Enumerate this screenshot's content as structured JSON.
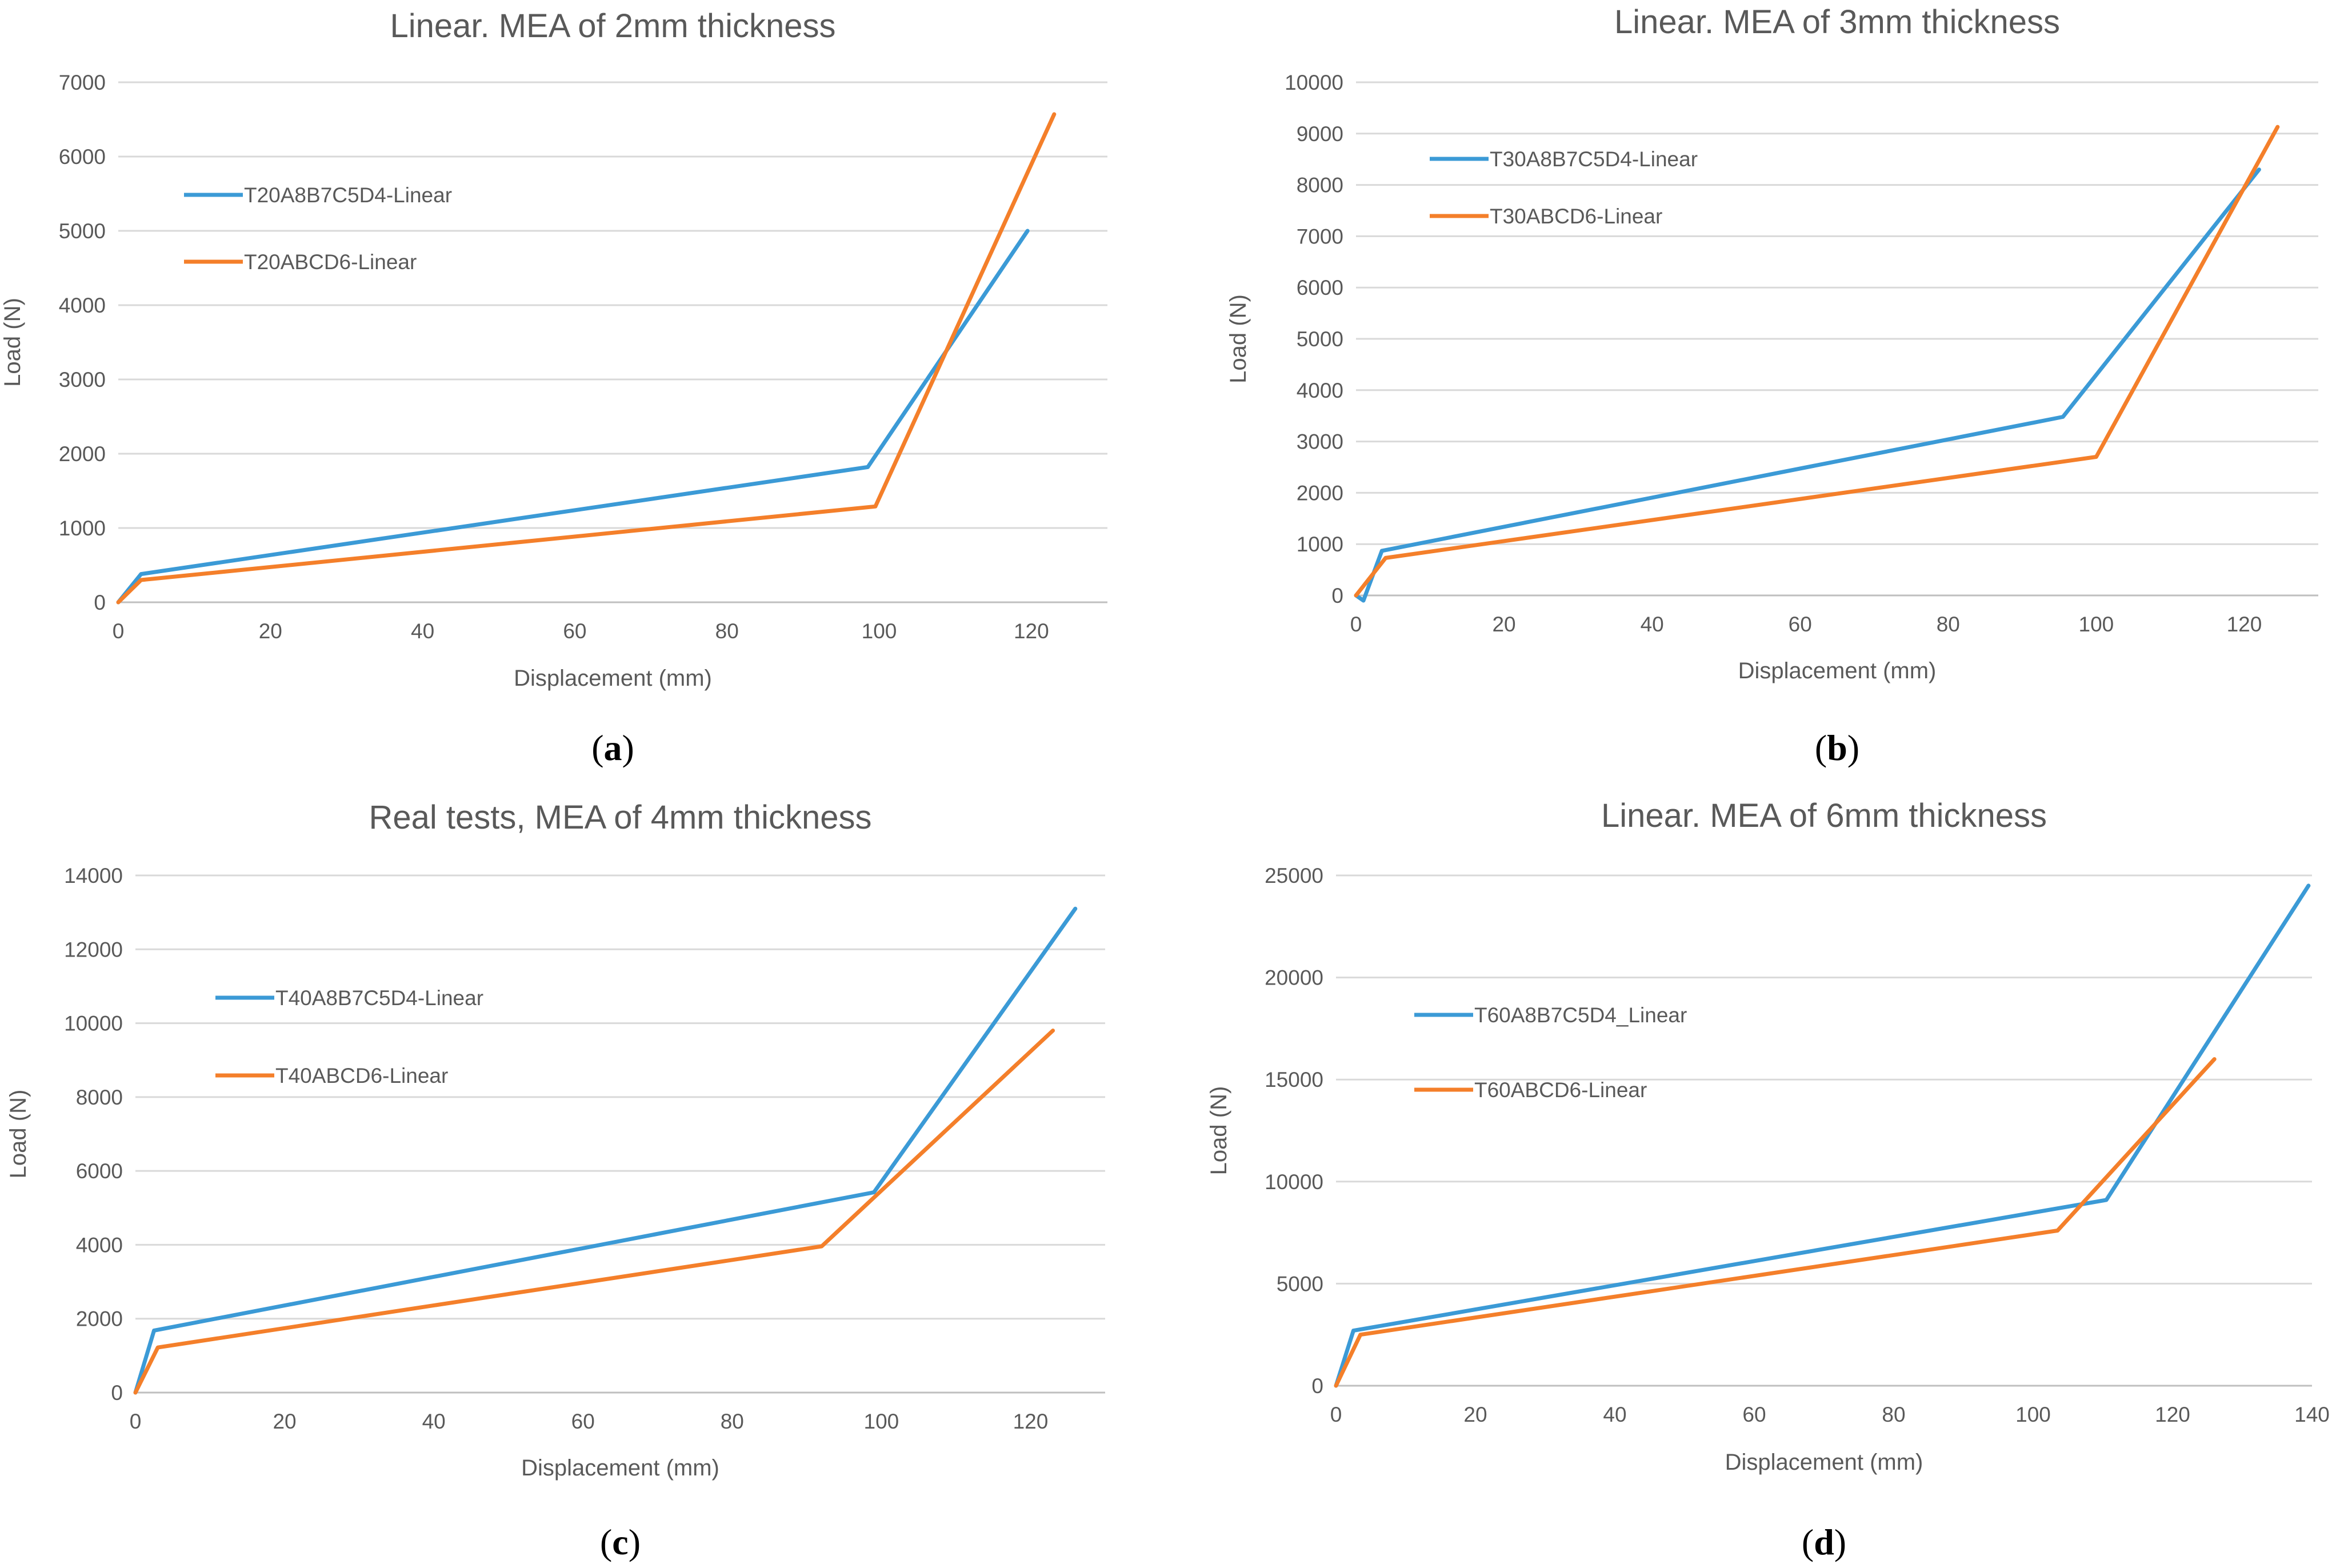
{
  "colors": {
    "series_1": "#3b9ad6",
    "series_2": "#f47f2a"
  },
  "chart_data": [
    {
      "type": "line",
      "title": "Linear. MEA of 2mm thickness",
      "xlabel": "Displacement (mm)",
      "ylabel": "Load (N)",
      "xlim": [
        0,
        130
      ],
      "ylim": [
        0,
        7000
      ],
      "xticks": [
        0,
        20,
        40,
        60,
        80,
        100,
        120
      ],
      "yticks": [
        0,
        1000,
        2000,
        3000,
        4000,
        5000,
        6000,
        7000
      ],
      "grid": true,
      "legend_position": "upper-left",
      "caption_open": "(",
      "caption_letter": "a",
      "caption_close": ")",
      "series": [
        {
          "name": "T20A8B7C5D4-Linear",
          "x": [
            0,
            3,
            98.5,
            119.5
          ],
          "y": [
            0,
            380,
            1820,
            5000
          ]
        },
        {
          "name": "T20ABCD6-Linear",
          "x": [
            0,
            3,
            99.5,
            123
          ],
          "y": [
            0,
            300,
            1290,
            6570
          ]
        }
      ]
    },
    {
      "type": "line",
      "title": "Linear. MEA of 3mm thickness",
      "xlabel": "Displacement (mm)",
      "ylabel": "Load (N)",
      "xlim": [
        0,
        130
      ],
      "ylim": [
        0,
        10000
      ],
      "xticks": [
        0,
        20,
        40,
        60,
        80,
        100,
        120
      ],
      "yticks": [
        0,
        1000,
        2000,
        3000,
        4000,
        5000,
        6000,
        7000,
        8000,
        9000,
        10000
      ],
      "grid": true,
      "legend_position": "upper-left",
      "caption_open": "(",
      "caption_letter": "b",
      "caption_close": ")",
      "series": [
        {
          "name": "T30A8B7C5D4-Linear",
          "x": [
            0,
            1,
            3.5,
            95.5,
            122
          ],
          "y": [
            0,
            -100,
            870,
            3480,
            8300
          ]
        },
        {
          "name": "T30ABCD6-Linear",
          "x": [
            0,
            4,
            100,
            124.5
          ],
          "y": [
            0,
            730,
            2700,
            9130
          ]
        }
      ]
    },
    {
      "type": "line",
      "title": "Real tests, MEA of 4mm thickness",
      "xlabel": "Displacement (mm)",
      "ylabel": "Load (N)",
      "xlim": [
        0,
        130
      ],
      "ylim": [
        0,
        14000
      ],
      "xticks": [
        0,
        20,
        40,
        60,
        80,
        100,
        120
      ],
      "yticks": [
        0,
        2000,
        4000,
        6000,
        8000,
        10000,
        12000,
        14000
      ],
      "grid": true,
      "legend_position": "upper-left",
      "caption_open": "(",
      "caption_letter": "c",
      "caption_close": ")",
      "series": [
        {
          "name": "T40A8B7C5D4-Linear",
          "x": [
            0,
            2.5,
            99,
            126
          ],
          "y": [
            0,
            1680,
            5420,
            13100
          ]
        },
        {
          "name": "T40ABCD6-Linear",
          "x": [
            0,
            3,
            92,
            123
          ],
          "y": [
            0,
            1220,
            3960,
            9800
          ]
        }
      ]
    },
    {
      "type": "line",
      "title": "Linear. MEA of 6mm thickness",
      "xlabel": "Displacement (mm)",
      "ylabel": "Load (N)",
      "xlim": [
        0,
        140
      ],
      "ylim": [
        0,
        25000
      ],
      "xticks": [
        0,
        20,
        40,
        60,
        80,
        100,
        120,
        140
      ],
      "yticks": [
        0,
        5000,
        10000,
        15000,
        20000,
        25000
      ],
      "grid": true,
      "legend_position": "upper-left",
      "caption_open": "(",
      "caption_letter": "d",
      "caption_close": ")",
      "series": [
        {
          "name": "T60A8B7C5D4_Linear",
          "x": [
            0,
            2.5,
            110.5,
            139.5
          ],
          "y": [
            0,
            2700,
            9100,
            24500
          ]
        },
        {
          "name": "T60ABCD6-Linear",
          "x": [
            0,
            3.5,
            103.5,
            126
          ],
          "y": [
            0,
            2500,
            7600,
            16000
          ]
        }
      ]
    }
  ]
}
